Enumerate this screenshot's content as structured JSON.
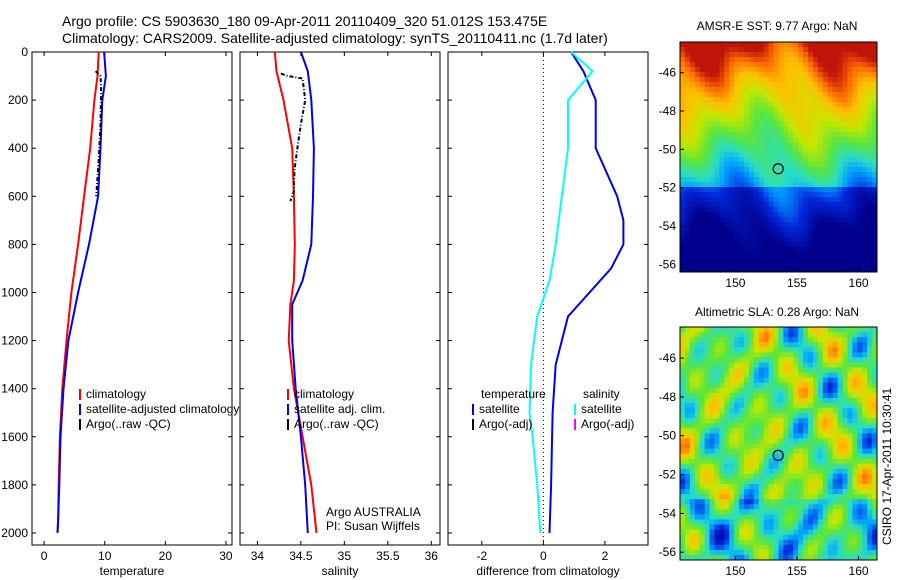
{
  "header": {
    "line1": "Argo profile: CS 5903630_180 09-Apr-2011 20110409_320 51.012S 153.475E",
    "line2": "Climatology: CARS2009. Satellite-adjusted climatology: synTS_20110411.nc (1.7d later)"
  },
  "side_label": "CSIRO 17-Apr-2011 10:30:41",
  "colors": {
    "climatology": "#ff0000",
    "satellite": "#0000ee",
    "argo": "#000000",
    "satellite_salinity_diff": "#00ffff",
    "argo_salinity_diff": "#ff00ff"
  },
  "chart_data": [
    {
      "type": "line",
      "xlabel": "temperature",
      "ylabel": "",
      "xlim": [
        -2,
        31
      ],
      "ylim": [
        2050,
        0
      ],
      "xticks": [
        "0",
        "10",
        "20",
        "30"
      ],
      "yticks": [
        "0",
        "200",
        "400",
        "600",
        "800",
        "1000",
        "1200",
        "1400",
        "1600",
        "1800",
        "2000"
      ],
      "legend": {
        "placement": "lower-right",
        "entries": [
          "climatology",
          "satellite-adjusted climatology",
          "Argo(..raw -QC)"
        ]
      },
      "series": [
        {
          "name": "climatology",
          "color": "#ff0000",
          "x": [
            9.0,
            8.8,
            8.3,
            7.6,
            6.6,
            5.6,
            4.5,
            3.7,
            3.0,
            2.6,
            2.4,
            2.3,
            2.2
          ],
          "y": [
            0,
            100,
            200,
            400,
            600,
            800,
            1000,
            1200,
            1400,
            1600,
            1800,
            1950,
            2000
          ]
        },
        {
          "name": "satellite-adjusted climatology",
          "color": "#0000ee",
          "x": [
            9.9,
            10.2,
            9.6,
            9.3,
            8.9,
            7.4,
            5.6,
            4.0,
            3.2,
            2.7,
            2.5,
            2.3,
            2.2
          ],
          "y": [
            0,
            100,
            200,
            400,
            600,
            800,
            1000,
            1200,
            1400,
            1600,
            1800,
            1950,
            2000
          ]
        },
        {
          "name": "Argo(..raw -QC)",
          "color": "#000000",
          "x": [
            8.5,
            9.3,
            9.4,
            9.3,
            9.0,
            8.6
          ],
          "y": [
            80,
            100,
            150,
            300,
            450,
            600
          ]
        }
      ]
    },
    {
      "type": "line",
      "xlabel": "salinity",
      "ylabel": "",
      "xlim": [
        33.8,
        36.1
      ],
      "ylim": [
        2050,
        0
      ],
      "xticks": [
        "34",
        "34.5",
        "35",
        "35.5",
        "36"
      ],
      "yticks": [],
      "legend": {
        "placement": "lower-right",
        "entries": [
          "climatology",
          "satellite adj. clim.",
          "Argo(..raw -QC)"
        ]
      },
      "annotation": [
        "Argo AUSTRALIA",
        "PI: Susan Wijffels"
      ],
      "series": [
        {
          "name": "climatology",
          "color": "#ff0000",
          "x": [
            34.2,
            34.22,
            34.3,
            34.4,
            34.42,
            34.43,
            34.42,
            34.38,
            34.36,
            34.42,
            34.52,
            34.62,
            34.68
          ],
          "y": [
            0,
            80,
            200,
            400,
            600,
            800,
            950,
            1050,
            1200,
            1400,
            1600,
            1800,
            2000
          ]
        },
        {
          "name": "satellite adj. clim.",
          "color": "#0000ee",
          "x": [
            34.5,
            34.58,
            34.62,
            34.65,
            34.64,
            34.62,
            34.52,
            34.4,
            34.4,
            34.44,
            34.5,
            34.55,
            34.58
          ],
          "y": [
            0,
            80,
            200,
            400,
            600,
            800,
            950,
            1050,
            1200,
            1400,
            1600,
            1800,
            2000
          ]
        },
        {
          "name": "Argo(..raw -QC)",
          "color": "#000000",
          "x": [
            34.27,
            34.35,
            34.52,
            34.55,
            34.5,
            34.46,
            34.43,
            34.42,
            34.42,
            34.38
          ],
          "y": [
            90,
            100,
            110,
            200,
            300,
            400,
            480,
            540,
            580,
            620
          ]
        }
      ]
    },
    {
      "type": "line",
      "xlabel": "difference from climatology",
      "ylabel": "",
      "xlim": [
        -3.1,
        3.4
      ],
      "ylim": [
        2050,
        0
      ],
      "xticks": [
        "-2",
        "0",
        "2"
      ],
      "yticks": [],
      "legend": {
        "placement": "lower-center",
        "entries": [
          "temperature",
          "satellite",
          "Argo(-adj)",
          "salinity",
          "satellite",
          "Argo(-adj)"
        ]
      },
      "series": [
        {
          "name": "satellite",
          "color": "#0000ee",
          "x": [
            0.9,
            1.3,
            1.7,
            1.7,
            2.4,
            2.6,
            2.6,
            2.2,
            0.8,
            0.4,
            0.3,
            0.25,
            0.2
          ],
          "y": [
            0,
            80,
            200,
            400,
            600,
            700,
            800,
            900,
            1100,
            1300,
            1500,
            1800,
            2000
          ]
        },
        {
          "name": "satellite",
          "color": "#00ffff",
          "x": [
            0.9,
            1.6,
            0.8,
            0.8,
            0.6,
            0.4,
            0.2,
            -0.2,
            -0.4,
            -0.45,
            -0.35,
            -0.2,
            -0.1
          ],
          "y": [
            0,
            80,
            200,
            400,
            600,
            800,
            950,
            1100,
            1300,
            1500,
            1600,
            1800,
            2000
          ]
        }
      ]
    }
  ],
  "maps": [
    {
      "title": "AMSR-E SST: 9.77 Argo: NaN",
      "xticks": [
        "150",
        "155",
        "160"
      ],
      "yticks": [
        "-46",
        "-48",
        "-50",
        "-52",
        "-54",
        "-56"
      ],
      "colorscheme": "sst"
    },
    {
      "title": "Altimetric SLA: 0.28 Argo: NaN",
      "xticks": [
        "150",
        "155",
        "160"
      ],
      "yticks": [
        "-46",
        "-48",
        "-50",
        "-52",
        "-54",
        "-56"
      ],
      "colorscheme": "sla"
    }
  ]
}
